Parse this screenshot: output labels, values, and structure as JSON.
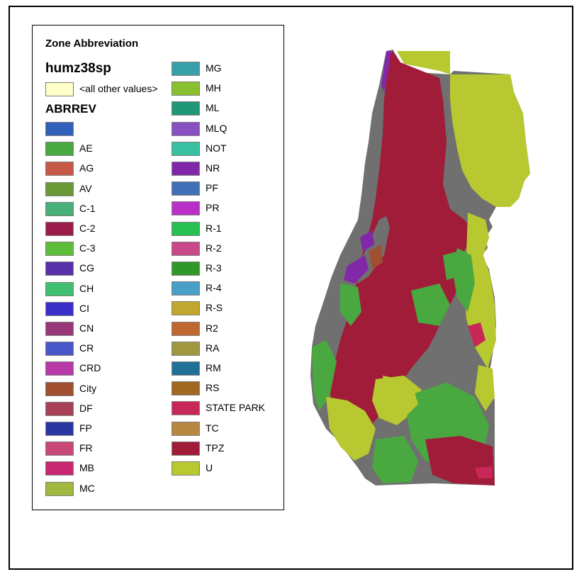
{
  "legend": {
    "title": "Zone Abbreviation",
    "layer": "humz38sp",
    "other_label": "<all other values>",
    "other_color": "#ffffc8",
    "field": "ABRREV",
    "entries": [
      {
        "label": "",
        "color": "#3060b8"
      },
      {
        "label": "AE",
        "color": "#4aa840"
      },
      {
        "label": "AG",
        "color": "#c85848"
      },
      {
        "label": "AV",
        "color": "#6a9a38"
      },
      {
        "label": "C-1",
        "color": "#48b078"
      },
      {
        "label": "C-2",
        "color": "#9a1c48"
      },
      {
        "label": "C-3",
        "color": "#5cbe38"
      },
      {
        "label": "CG",
        "color": "#5830a8"
      },
      {
        "label": "CH",
        "color": "#40c070"
      },
      {
        "label": "CI",
        "color": "#3a30c8"
      },
      {
        "label": "CN",
        "color": "#983878"
      },
      {
        "label": "CR",
        "color": "#4858c8"
      },
      {
        "label": "CRD",
        "color": "#b838a8"
      },
      {
        "label": "City",
        "color": "#a05030"
      },
      {
        "label": "DF",
        "color": "#a84058"
      },
      {
        "label": "FP",
        "color": "#2838a0"
      },
      {
        "label": "FR",
        "color": "#c84878"
      },
      {
        "label": "MB",
        "color": "#c82870"
      },
      {
        "label": "MC",
        "color": "#a0b840"
      },
      {
        "label": "MG",
        "color": "#38a0a8"
      },
      {
        "label": "MH",
        "color": "#88c030"
      },
      {
        "label": "ML",
        "color": "#209878"
      },
      {
        "label": "MLQ",
        "color": "#8850c0"
      },
      {
        "label": "NOT",
        "color": "#38c0a0"
      },
      {
        "label": "NR",
        "color": "#8028a8"
      },
      {
        "label": "PF",
        "color": "#4070b8"
      },
      {
        "label": "PR",
        "color": "#b830c8"
      },
      {
        "label": "R-1",
        "color": "#28c050"
      },
      {
        "label": "R-2",
        "color": "#c84888"
      },
      {
        "label": "R-3",
        "color": "#309828"
      },
      {
        "label": "R-4",
        "color": "#48a0c8"
      },
      {
        "label": "R-S",
        "color": "#c0a830"
      },
      {
        "label": "R2",
        "color": "#c06830"
      },
      {
        "label": "RA",
        "color": "#a09840"
      },
      {
        "label": "RM",
        "color": "#207098"
      },
      {
        "label": "RS",
        "color": "#a06820"
      },
      {
        "label": "STATE PARK",
        "color": "#c82858"
      },
      {
        "label": "TC",
        "color": "#b88840"
      },
      {
        "label": "TPZ",
        "color": "#a01c38"
      },
      {
        "label": "U",
        "color": "#b8c830"
      }
    ]
  },
  "map": {
    "colors": {
      "tpz": "#a01c38",
      "u": "#b8c830",
      "green": "#4aa840",
      "gray": "#707070",
      "purple": "#8028a8",
      "brown": "#a05030",
      "pink": "#c82858"
    }
  }
}
